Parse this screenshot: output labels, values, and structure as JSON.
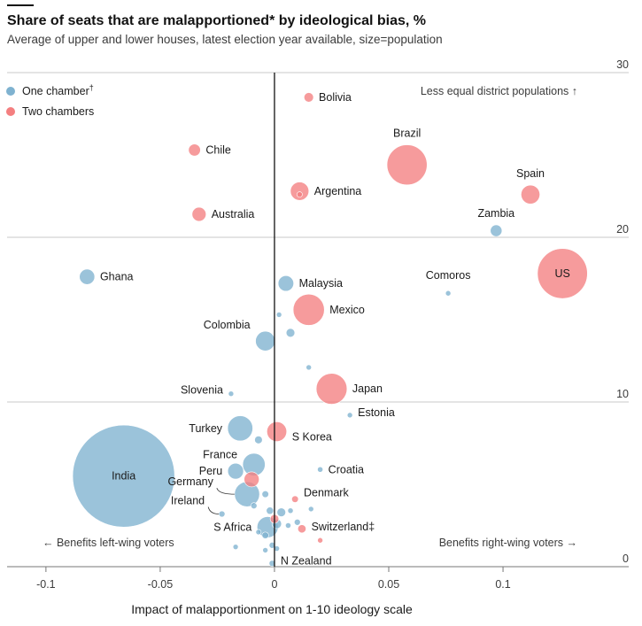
{
  "header": {
    "title": "Share of seats that are malapportioned* by ideological bias, %",
    "subtitle": "Average of upper and lower houses, latest election year available, size=population"
  },
  "colors": {
    "one_chamber": "#7fb2d0",
    "two_chambers": "#f47f80",
    "grid": "#c9c9c9",
    "zero_line": "#121212"
  },
  "legend": {
    "one_chamber": {
      "label": "One chamber",
      "mark": "†"
    },
    "two_chambers": {
      "label": "Two chambers"
    }
  },
  "annotations": {
    "top_right": "Less equal district populations ↑",
    "bottom_left": "← Benefits left-wing voters",
    "bottom_right": "Benefits right-wing voters →"
  },
  "chart_data": {
    "type": "scatter",
    "xlabel": "Impact of malapportionment on 1-10 ideology scale",
    "ylabel": "",
    "xlim": [
      -0.117,
      0.155
    ],
    "ylim": [
      0,
      30
    ],
    "x_ticks": [
      "-0.1",
      "-0.05",
      "0",
      "0.05",
      "0.1"
    ],
    "y_ticks": [
      "30",
      "20",
      "10",
      "0"
    ],
    "grid": true,
    "legend_position": "top-left",
    "series": [
      {
        "name": "One chamber",
        "points": [
          {
            "label": "India",
            "x": -0.066,
            "y": 5.5,
            "pop": 1380
          },
          {
            "label": "Ghana",
            "x": -0.082,
            "y": 17.6,
            "pop": 31
          },
          {
            "label": "Colombia",
            "x": -0.004,
            "y": 13.7,
            "pop": 51
          },
          {
            "label": "Malaysia",
            "x": 0.005,
            "y": 17.2,
            "pop": 32
          },
          {
            "label": "Slovenia",
            "x": -0.019,
            "y": 10.5,
            "pop": 2
          },
          {
            "label": "Turkey",
            "x": -0.015,
            "y": 8.4,
            "pop": 84
          },
          {
            "label": "France",
            "x": -0.009,
            "y": 6.2,
            "pop": 67
          },
          {
            "label": "Peru",
            "x": -0.017,
            "y": 5.8,
            "pop": 33
          },
          {
            "label": "Ireland",
            "x": -0.023,
            "y": 3.2,
            "pop": 5
          },
          {
            "label": "Germany",
            "x": -0.012,
            "y": 4.4,
            "pop": 83
          },
          {
            "label": "S Africa",
            "x": -0.003,
            "y": 2.4,
            "pop": 59
          },
          {
            "label": "N Zealand",
            "x": -0.001,
            "y": 0.2,
            "pop": 5
          },
          {
            "label": "Estonia",
            "x": 0.033,
            "y": 9.2,
            "pop": 1.3
          },
          {
            "label": "Croatia",
            "x": 0.02,
            "y": 5.9,
            "pop": 4
          },
          {
            "label": "Zambia",
            "x": 0.097,
            "y": 20.4,
            "pop": 18
          },
          {
            "label": "Comoros",
            "x": 0.076,
            "y": 16.6,
            "pop": 0.9
          },
          {
            "label": "",
            "x": 0.007,
            "y": 14.2,
            "pop": 10
          },
          {
            "label": "",
            "x": 0.002,
            "y": 15.3,
            "pop": 3
          },
          {
            "label": "",
            "x": 0.015,
            "y": 12.1,
            "pop": 2
          },
          {
            "label": "",
            "x": -0.007,
            "y": 7.7,
            "pop": 8
          },
          {
            "label": "",
            "x": -0.004,
            "y": 4.4,
            "pop": 6
          },
          {
            "label": "",
            "x": -0.009,
            "y": 3.7,
            "pop": 5
          },
          {
            "label": "",
            "x": -0.002,
            "y": 3.4,
            "pop": 7
          },
          {
            "label": "",
            "x": 0.003,
            "y": 3.3,
            "pop": 10
          },
          {
            "label": "",
            "x": 0.007,
            "y": 3.4,
            "pop": 4
          },
          {
            "label": "",
            "x": 0.01,
            "y": 2.7,
            "pop": 5
          },
          {
            "label": "",
            "x": 0.016,
            "y": 3.5,
            "pop": 3
          },
          {
            "label": "",
            "x": 0.001,
            "y": 2.6,
            "pop": 12
          },
          {
            "label": "",
            "x": 0.006,
            "y": 2.5,
            "pop": 4
          },
          {
            "label": "",
            "x": -0.004,
            "y": 1.9,
            "pop": 6
          },
          {
            "label": "",
            "x": -0.001,
            "y": 1.3,
            "pop": 5
          },
          {
            "label": "",
            "x": -0.004,
            "y": 1.0,
            "pop": 3
          },
          {
            "label": "",
            "x": 0.001,
            "y": 1.1,
            "pop": 4
          },
          {
            "label": "",
            "x": -0.007,
            "y": 2.1,
            "pop": 3
          },
          {
            "label": "",
            "x": -0.017,
            "y": 1.2,
            "pop": 3
          }
        ]
      },
      {
        "name": "Two chambers",
        "points": [
          {
            "label": "Bolivia",
            "x": 0.015,
            "y": 28.5,
            "pop": 12
          },
          {
            "label": "Chile",
            "x": -0.035,
            "y": 25.3,
            "pop": 19
          },
          {
            "label": "Australia",
            "x": -0.033,
            "y": 21.4,
            "pop": 26
          },
          {
            "label": "Argentina",
            "x": 0.011,
            "y": 22.8,
            "pop": 45
          },
          {
            "label": "Brazil",
            "x": 0.058,
            "y": 24.4,
            "pop": 213
          },
          {
            "label": "Spain",
            "x": 0.112,
            "y": 22.6,
            "pop": 47
          },
          {
            "label": "US",
            "x": 0.126,
            "y": 17.8,
            "pop": 331
          },
          {
            "label": "Mexico",
            "x": 0.015,
            "y": 15.6,
            "pop": 129
          },
          {
            "label": "Japan",
            "x": 0.025,
            "y": 10.8,
            "pop": 126
          },
          {
            "label": "S Korea",
            "x": 0.001,
            "y": 8.2,
            "pop": 52
          },
          {
            "label": "Denmark",
            "x": 0.009,
            "y": 4.1,
            "pop": 6
          },
          {
            "label": "Switzerland",
            "x": 0.012,
            "y": 2.3,
            "pop": 9
          },
          {
            "label": "",
            "x": -0.01,
            "y": 5.3,
            "pop": 30
          },
          {
            "label": "",
            "x": 0.02,
            "y": 1.6,
            "pop": 1.5
          },
          {
            "label": "",
            "x": 0.0,
            "y": 2.9,
            "pop": 10
          },
          {
            "label": "",
            "x": 0.011,
            "y": 22.6,
            "pop": 4
          }
        ]
      }
    ],
    "point_labels": {
      "Switzerland": "Switzerland‡"
    }
  }
}
